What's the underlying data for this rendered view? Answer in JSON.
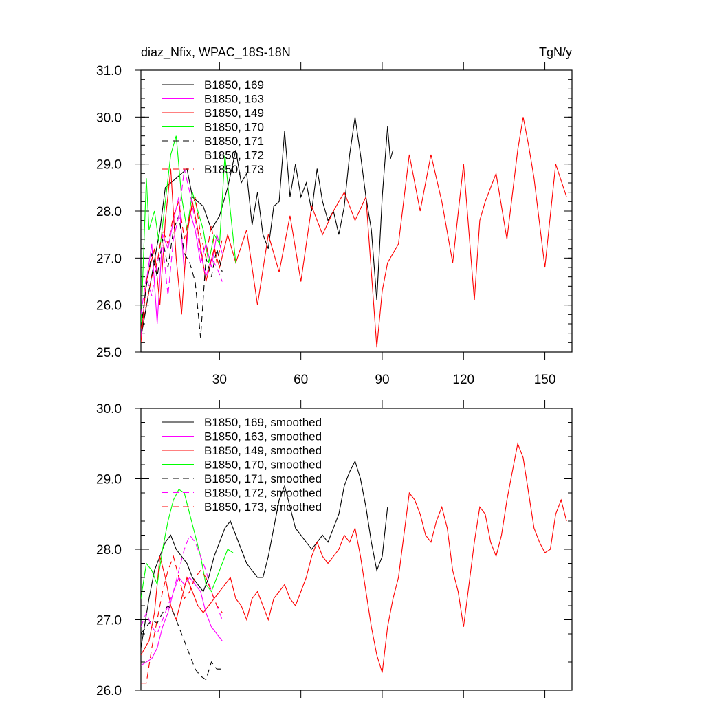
{
  "chart_data": [
    {
      "type": "line",
      "title": "diaz_Nfix, WPAC_18S-18N",
      "units": "TgN/y",
      "ylim": [
        25.0,
        31.0
      ],
      "xlim": [
        1,
        160
      ],
      "xticks": [
        30,
        60,
        90,
        120,
        150
      ],
      "yticks": [
        "25.0",
        "26.0",
        "27.0",
        "28.0",
        "29.0",
        "30.0",
        "31.0"
      ],
      "grid": false,
      "legend_position": "top-left",
      "series": [
        {
          "name": "B1850, 169",
          "color": "#000000",
          "dash": "solid",
          "x": [
            1,
            4,
            8,
            10,
            14,
            18,
            20,
            24,
            27,
            30,
            33,
            36,
            38,
            40,
            42,
            44,
            46,
            48,
            50,
            52,
            54,
            56,
            58,
            60,
            62,
            64,
            66,
            68,
            70,
            72,
            74,
            76,
            78,
            80,
            82,
            84,
            86,
            88,
            90,
            92,
            93,
            94
          ],
          "y": [
            25.3,
            26.3,
            27.6,
            28.5,
            28.7,
            28.9,
            28.3,
            28.1,
            27.6,
            27.9,
            28.5,
            29.3,
            28.6,
            28.8,
            27.7,
            28.4,
            27.5,
            27.2,
            28.1,
            28.2,
            29.7,
            28.3,
            29.0,
            28.3,
            28.6,
            28.0,
            28.9,
            28.2,
            27.8,
            28.0,
            27.5,
            28.1,
            29.2,
            30.0,
            29.2,
            28.3,
            27.6,
            26.1,
            28.3,
            29.8,
            29.1,
            29.3
          ]
        },
        {
          "name": "B1850, 163",
          "color": "#ff00ff",
          "dash": "solid",
          "x": [
            1,
            3,
            5,
            7,
            9,
            11,
            13,
            15,
            17,
            19,
            21,
            23,
            25,
            27,
            29,
            31
          ],
          "y": [
            25.3,
            26.5,
            27.3,
            25.6,
            27.5,
            27.2,
            27.8,
            28.3,
            26.7,
            28.0,
            27.6,
            26.9,
            27.3,
            26.8,
            27.5,
            27.1
          ]
        },
        {
          "name": "B1850, 149",
          "color": "#ff0000",
          "dash": "solid",
          "x": [
            1,
            3,
            6,
            8,
            10,
            12,
            14,
            16,
            18,
            20,
            22,
            25,
            28,
            30,
            33,
            36,
            40,
            44,
            48,
            52,
            56,
            60,
            64,
            68,
            72,
            76,
            80,
            84,
            88,
            90,
            92,
            96,
            100,
            104,
            108,
            112,
            116,
            120,
            124,
            126,
            128,
            132,
            136,
            140,
            142,
            144,
            146,
            150,
            154,
            158,
            160
          ],
          "y": [
            25.2,
            26.5,
            27.2,
            26.0,
            27.8,
            28.9,
            27.0,
            25.8,
            27.5,
            28.2,
            27.6,
            26.5,
            27.2,
            26.8,
            27.5,
            26.9,
            27.6,
            26.0,
            27.5,
            26.7,
            27.9,
            26.5,
            28.1,
            27.5,
            28.0,
            28.4,
            27.8,
            28.3,
            25.1,
            26.3,
            26.9,
            27.3,
            29.2,
            28.0,
            29.2,
            28.2,
            26.9,
            29.0,
            26.1,
            27.8,
            28.2,
            28.8,
            27.4,
            29.3,
            30.0,
            29.4,
            28.7,
            26.8,
            29.0,
            28.3,
            28.3
          ]
        },
        {
          "name": "B1850, 170",
          "color": "#00ff00",
          "dash": "solid",
          "x": [
            1,
            3,
            4,
            6,
            8,
            10,
            12,
            14,
            16,
            18,
            20,
            22,
            24,
            26,
            28,
            30,
            32,
            34,
            36
          ],
          "y": [
            25.5,
            28.7,
            27.6,
            28.0,
            27.2,
            28.2,
            29.2,
            29.6,
            28.3,
            27.6,
            28.4,
            28.0,
            27.6,
            26.9,
            27.5,
            27.3,
            29.2,
            28.0,
            26.9
          ]
        },
        {
          "name": "B1850, 171",
          "color": "#000000",
          "dash": "dashed",
          "x": [
            1,
            3,
            5,
            7,
            9,
            11,
            13,
            15,
            17,
            19,
            21,
            23,
            25,
            27,
            29,
            31
          ],
          "y": [
            25.5,
            26.4,
            27.1,
            26.6,
            27.4,
            26.8,
            27.6,
            27.9,
            27.1,
            26.9,
            26.5,
            25.3,
            27.0,
            26.6,
            27.2,
            26.7
          ]
        },
        {
          "name": "B1850, 172",
          "color": "#ff00ff",
          "dash": "dashed",
          "x": [
            1,
            3,
            5,
            7,
            9,
            11,
            13,
            15,
            17,
            19,
            21,
            23,
            25,
            27,
            29,
            31
          ],
          "y": [
            25.8,
            26.6,
            26.2,
            26.9,
            27.3,
            26.2,
            27.4,
            27.9,
            28.9,
            28.4,
            27.8,
            27.1,
            26.6,
            27.0,
            26.8,
            26.5
          ]
        },
        {
          "name": "B1850, 173",
          "color": "#ff0000",
          "dash": "dashed",
          "x": [
            1,
            3,
            5,
            7,
            9,
            11,
            13,
            15,
            17,
            19,
            21,
            23,
            25,
            27,
            29,
            31
          ],
          "y": [
            25.5,
            26.0,
            26.6,
            26.9,
            27.6,
            27.3,
            27.9,
            28.2,
            27.4,
            27.9,
            28.3,
            27.5,
            27.0,
            27.7,
            26.9,
            27.4
          ]
        }
      ]
    },
    {
      "type": "line",
      "ylim": [
        26.0,
        30.0
      ],
      "xlim": [
        1,
        160
      ],
      "xticks": [
        30,
        60,
        90,
        120,
        150
      ],
      "yticks": [
        "26.0",
        "27.0",
        "28.0",
        "29.0",
        "30.0"
      ],
      "grid": false,
      "legend_position": "top-left",
      "series": [
        {
          "name": "B1850, 169, smoothed",
          "color": "#000000",
          "dash": "solid",
          "x": [
            1,
            4,
            6,
            8,
            10,
            12,
            14,
            16,
            18,
            20,
            22,
            24,
            26,
            28,
            30,
            32,
            34,
            36,
            38,
            40,
            42,
            44,
            46,
            48,
            50,
            52,
            54,
            56,
            58,
            60,
            62,
            64,
            66,
            68,
            70,
            72,
            74,
            76,
            78,
            80,
            82,
            84,
            86,
            88,
            90,
            92
          ],
          "y": [
            26.6,
            27.3,
            27.7,
            27.9,
            28.1,
            28.2,
            28.0,
            27.9,
            27.8,
            27.6,
            27.5,
            27.4,
            27.6,
            27.9,
            28.1,
            28.3,
            28.4,
            28.2,
            28.0,
            27.8,
            27.7,
            27.6,
            27.6,
            27.9,
            28.3,
            28.7,
            28.9,
            28.6,
            28.3,
            28.2,
            28.1,
            28.0,
            28.1,
            28.2,
            28.1,
            28.3,
            28.5,
            28.9,
            29.1,
            29.25,
            29.0,
            28.6,
            28.1,
            27.7,
            27.9,
            28.6
          ]
        },
        {
          "name": "B1850, 163, smoothed",
          "color": "#ff00ff",
          "dash": "solid",
          "x": [
            1,
            3,
            5,
            7,
            9,
            11,
            13,
            15,
            17,
            19,
            21,
            23,
            25,
            27,
            29,
            31
          ],
          "y": [
            26.35,
            26.4,
            26.45,
            26.6,
            26.9,
            27.1,
            27.4,
            27.6,
            27.5,
            27.6,
            27.5,
            27.4,
            27.1,
            26.9,
            26.8,
            26.7
          ]
        },
        {
          "name": "B1850, 149, smoothed",
          "color": "#ff0000",
          "dash": "solid",
          "x": [
            1,
            4,
            6,
            8,
            10,
            12,
            14,
            16,
            18,
            20,
            22,
            24,
            26,
            28,
            30,
            32,
            34,
            36,
            38,
            40,
            42,
            44,
            46,
            48,
            50,
            52,
            54,
            56,
            58,
            60,
            62,
            64,
            66,
            68,
            70,
            72,
            74,
            76,
            78,
            80,
            82,
            84,
            86,
            88,
            90,
            92,
            94,
            96,
            98,
            100,
            102,
            104,
            106,
            108,
            110,
            112,
            114,
            116,
            118,
            120,
            122,
            124,
            126,
            128,
            130,
            132,
            134,
            136,
            138,
            140,
            142,
            144,
            146,
            148,
            150,
            152,
            154,
            156,
            158
          ],
          "y": [
            26.5,
            26.7,
            27.1,
            27.9,
            27.6,
            27.2,
            27.0,
            27.3,
            27.6,
            27.4,
            27.2,
            27.1,
            27.2,
            27.3,
            27.4,
            27.5,
            27.6,
            27.3,
            27.2,
            27.0,
            27.3,
            27.4,
            27.2,
            27.0,
            27.3,
            27.4,
            27.5,
            27.3,
            27.2,
            27.4,
            27.6,
            27.9,
            28.1,
            27.9,
            27.8,
            27.9,
            28.0,
            28.2,
            28.1,
            28.3,
            27.9,
            27.4,
            26.9,
            26.5,
            26.25,
            26.9,
            27.3,
            27.6,
            28.2,
            28.8,
            28.7,
            28.5,
            28.2,
            28.1,
            28.4,
            28.6,
            28.3,
            27.7,
            27.4,
            26.9,
            27.5,
            28.1,
            28.6,
            28.5,
            28.1,
            27.9,
            28.2,
            28.7,
            29.1,
            29.5,
            29.3,
            28.8,
            28.3,
            28.1,
            27.95,
            28.0,
            28.5,
            28.7,
            28.4
          ]
        },
        {
          "name": "B1850, 170, smoothed",
          "color": "#00ff00",
          "dash": "solid",
          "x": [
            1,
            3,
            5,
            7,
            9,
            11,
            13,
            15,
            17,
            19,
            21,
            23,
            25,
            27,
            29,
            31,
            33,
            35
          ],
          "y": [
            27.3,
            27.8,
            27.7,
            27.5,
            28.0,
            28.4,
            28.7,
            28.85,
            28.8,
            28.5,
            28.2,
            27.9,
            27.5,
            27.4,
            27.6,
            27.8,
            28.0,
            27.95
          ]
        },
        {
          "name": "B1850, 171, smoothed",
          "color": "#000000",
          "dash": "dashed",
          "x": [
            1,
            3,
            5,
            7,
            9,
            11,
            13,
            15,
            17,
            19,
            21,
            23,
            25,
            27,
            29,
            31
          ],
          "y": [
            26.8,
            26.9,
            27.0,
            26.95,
            27.1,
            27.2,
            27.1,
            26.9,
            26.7,
            26.5,
            26.3,
            26.2,
            26.15,
            26.4,
            26.3,
            26.3
          ]
        },
        {
          "name": "B1850, 172, smoothed",
          "color": "#ff00ff",
          "dash": "dashed",
          "x": [
            1,
            3,
            5,
            7,
            9,
            11,
            13,
            15,
            17,
            19,
            21,
            23,
            25,
            27,
            29,
            31
          ],
          "y": [
            26.9,
            27.1,
            26.9,
            26.8,
            27.0,
            27.2,
            27.4,
            27.7,
            28.0,
            28.2,
            28.1,
            27.9,
            27.7,
            27.4,
            27.2,
            27.0
          ]
        },
        {
          "name": "B1850, 173, smoothed",
          "color": "#ff0000",
          "dash": "dashed",
          "x": [
            1,
            3,
            5,
            7,
            9,
            11,
            13,
            15,
            17,
            19,
            21,
            23,
            25,
            27,
            29,
            31
          ],
          "y": [
            26.1,
            26.1,
            26.6,
            27.0,
            27.4,
            27.7,
            27.9,
            27.6,
            27.3,
            27.4,
            27.6,
            27.7,
            27.6,
            27.4,
            27.2,
            27.1
          ]
        }
      ]
    }
  ]
}
